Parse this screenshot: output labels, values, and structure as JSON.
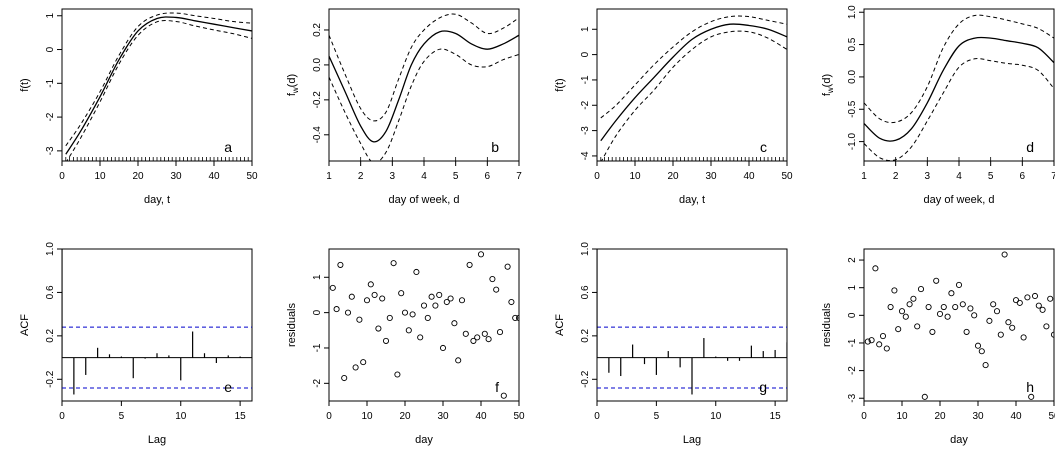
{
  "chart_data": [
    {
      "id": "a",
      "type": "line",
      "letter": "a",
      "xlabel": "day, t",
      "ylabel": "f(t)",
      "xlim": [
        0,
        50
      ],
      "ylim": [
        -3.3,
        1.2
      ],
      "xticks": [
        0,
        10,
        20,
        30,
        40,
        50
      ],
      "yticks": [
        -3,
        -2,
        -1,
        0,
        1
      ],
      "rug": true,
      "x": [
        1,
        5,
        10,
        15,
        20,
        25,
        30,
        35,
        40,
        45,
        50
      ],
      "series": [
        {
          "style": "solid",
          "values": [
            -3.1,
            -2.4,
            -1.4,
            -0.3,
            0.55,
            0.92,
            0.95,
            0.85,
            0.75,
            0.65,
            0.55
          ]
        },
        {
          "style": "dashed",
          "values": [
            -2.85,
            -2.2,
            -1.25,
            -0.17,
            0.68,
            1.02,
            1.08,
            1.0,
            0.92,
            0.83,
            0.78
          ]
        },
        {
          "style": "dashed",
          "values": [
            -3.35,
            -2.6,
            -1.55,
            -0.43,
            0.42,
            0.82,
            0.83,
            0.7,
            0.58,
            0.47,
            0.33
          ]
        }
      ]
    },
    {
      "id": "b",
      "type": "line",
      "letter": "b",
      "xlabel": "day of week, d",
      "ylabel": "f_w(d)",
      "xlim": [
        1,
        7
      ],
      "ylim": [
        -0.55,
        0.32
      ],
      "xticks": [
        1,
        2,
        3,
        4,
        5,
        6,
        7
      ],
      "yticks": [
        -0.4,
        -0.2,
        0.0,
        0.2
      ],
      "rug": true,
      "x": [
        1,
        1.5,
        2,
        2.4,
        2.8,
        3.2,
        3.6,
        4,
        4.5,
        5,
        5.5,
        6,
        6.5,
        7
      ],
      "series": [
        {
          "style": "solid",
          "values": [
            0.05,
            -0.15,
            -0.35,
            -0.44,
            -0.38,
            -0.2,
            0.0,
            0.12,
            0.19,
            0.18,
            0.12,
            0.09,
            0.12,
            0.17
          ]
        },
        {
          "style": "dashed",
          "values": [
            0.17,
            -0.05,
            -0.25,
            -0.32,
            -0.27,
            -0.08,
            0.1,
            0.2,
            0.27,
            0.29,
            0.24,
            0.18,
            0.21,
            0.27
          ]
        },
        {
          "style": "dashed",
          "values": [
            -0.07,
            -0.27,
            -0.45,
            -0.56,
            -0.5,
            -0.32,
            -0.12,
            0.02,
            0.09,
            0.06,
            0.0,
            -0.01,
            0.03,
            0.06
          ]
        }
      ]
    },
    {
      "id": "c",
      "type": "line",
      "letter": "c",
      "xlabel": "day, t",
      "ylabel": "f(t)",
      "xlim": [
        0,
        50
      ],
      "ylim": [
        -4.2,
        1.8
      ],
      "xticks": [
        0,
        10,
        20,
        30,
        40,
        50
      ],
      "yticks": [
        -4,
        -3,
        -2,
        -1,
        0,
        1
      ],
      "rug": true,
      "x": [
        1,
        5,
        10,
        15,
        20,
        25,
        30,
        35,
        40,
        45,
        50
      ],
      "series": [
        {
          "style": "solid",
          "values": [
            -3.4,
            -2.6,
            -1.7,
            -0.9,
            -0.1,
            0.6,
            1.0,
            1.2,
            1.15,
            1.0,
            0.7
          ]
        },
        {
          "style": "dashed",
          "values": [
            -2.5,
            -2.0,
            -1.2,
            -0.4,
            0.3,
            0.9,
            1.3,
            1.5,
            1.5,
            1.35,
            1.2
          ]
        },
        {
          "style": "dashed",
          "values": [
            -4.25,
            -3.2,
            -2.2,
            -1.4,
            -0.5,
            0.2,
            0.7,
            0.9,
            0.9,
            0.65,
            0.2
          ]
        }
      ]
    },
    {
      "id": "d",
      "type": "line",
      "letter": "d",
      "xlabel": "day of week, d",
      "ylabel": "f_w(d)",
      "xlim": [
        1,
        7
      ],
      "ylim": [
        -1.3,
        1.05
      ],
      "xticks": [
        1,
        2,
        3,
        4,
        5,
        6,
        7
      ],
      "yticks": [
        -1.0,
        -0.5,
        0.0,
        0.5,
        1.0
      ],
      "rug": true,
      "x": [
        1,
        1.5,
        2,
        2.5,
        3,
        3.5,
        4,
        4.5,
        5,
        5.5,
        6,
        6.5,
        7
      ],
      "series": [
        {
          "style": "solid",
          "values": [
            -0.72,
            -0.95,
            -0.98,
            -0.8,
            -0.4,
            0.1,
            0.48,
            0.6,
            0.6,
            0.56,
            0.52,
            0.45,
            0.22
          ]
        },
        {
          "style": "dashed",
          "values": [
            -0.4,
            -0.65,
            -0.7,
            -0.55,
            -0.15,
            0.45,
            0.82,
            0.95,
            0.93,
            0.88,
            0.82,
            0.75,
            0.6
          ]
        },
        {
          "style": "dashed",
          "values": [
            -1.03,
            -1.25,
            -1.28,
            -1.08,
            -0.68,
            -0.25,
            0.15,
            0.28,
            0.25,
            0.21,
            0.18,
            0.1,
            -0.18
          ]
        }
      ]
    },
    {
      "id": "e",
      "type": "acf",
      "letter": "e",
      "xlabel": "Lag",
      "ylabel": "ACF",
      "xlim": [
        0,
        16
      ],
      "ylim": [
        -0.4,
        1.0
      ],
      "xticks": [
        0,
        5,
        10,
        15
      ],
      "yticks": [
        -0.2,
        0.2,
        0.6,
        1.0
      ],
      "ci": 0.28,
      "ci_color": "#0000cc",
      "lags": [
        0,
        1,
        2,
        3,
        4,
        5,
        6,
        7,
        8,
        9,
        10,
        11,
        12,
        13,
        14,
        15,
        16
      ],
      "values": [
        1.0,
        -0.34,
        -0.16,
        0.09,
        0.03,
        0.01,
        -0.19,
        -0.01,
        0.04,
        0.02,
        -0.21,
        0.24,
        0.04,
        -0.05,
        0.02,
        0.01,
        0.07
      ]
    },
    {
      "id": "f",
      "type": "scatter",
      "letter": "f",
      "xlabel": "day",
      "ylabel": "residuals",
      "xlim": [
        0,
        50
      ],
      "ylim": [
        -2.5,
        1.8
      ],
      "xticks": [
        0,
        10,
        20,
        30,
        40,
        50
      ],
      "yticks": [
        -2,
        -1,
        0,
        1
      ],
      "x": [
        1,
        2,
        3,
        4,
        5,
        6,
        7,
        8,
        9,
        10,
        11,
        12,
        13,
        14,
        15,
        16,
        17,
        18,
        19,
        20,
        21,
        22,
        23,
        24,
        25,
        26,
        27,
        28,
        29,
        30,
        31,
        32,
        33,
        34,
        35,
        36,
        37,
        38,
        39,
        40,
        41,
        42,
        43,
        44,
        45,
        46,
        47,
        48,
        49,
        50
      ],
      "values": [
        0.7,
        0.1,
        1.35,
        -1.85,
        0.0,
        0.45,
        -1.55,
        -0.2,
        -1.4,
        0.35,
        0.8,
        0.5,
        -0.45,
        0.4,
        -0.8,
        -0.15,
        1.4,
        -1.75,
        0.55,
        0.0,
        -0.5,
        -0.05,
        1.15,
        -0.7,
        0.2,
        -0.15,
        0.45,
        0.2,
        0.5,
        -1.0,
        0.3,
        0.4,
        -0.3,
        -1.35,
        0.35,
        -0.6,
        1.35,
        -0.8,
        -0.7,
        1.65,
        -0.6,
        -0.75,
        0.95,
        0.65,
        -0.55,
        -2.35,
        1.3,
        0.3,
        -0.15,
        -0.15
      ]
    },
    {
      "id": "g",
      "type": "acf",
      "letter": "g",
      "xlabel": "Lag",
      "ylabel": "ACF",
      "xlim": [
        0,
        16
      ],
      "ylim": [
        -0.4,
        1.0
      ],
      "xticks": [
        0,
        5,
        10,
        15
      ],
      "yticks": [
        -0.2,
        0.2,
        0.6,
        1.0
      ],
      "ci": 0.28,
      "ci_color": "#0000cc",
      "lags": [
        0,
        1,
        2,
        3,
        4,
        5,
        6,
        7,
        8,
        9,
        10,
        11,
        12,
        13,
        14,
        15,
        16
      ],
      "values": [
        1.0,
        -0.14,
        -0.17,
        0.12,
        -0.06,
        -0.16,
        0.06,
        -0.09,
        -0.34,
        0.18,
        0.01,
        -0.03,
        -0.03,
        0.11,
        0.06,
        0.07,
        0.14
      ]
    },
    {
      "id": "h",
      "type": "scatter",
      "letter": "h",
      "xlabel": "day",
      "ylabel": "residuals",
      "xlim": [
        0,
        50
      ],
      "ylim": [
        -3.1,
        2.4
      ],
      "xticks": [
        0,
        10,
        20,
        30,
        40,
        50
      ],
      "yticks": [
        -3,
        -2,
        -1,
        0,
        1,
        2
      ],
      "x": [
        1,
        2,
        3,
        4,
        5,
        6,
        7,
        8,
        9,
        10,
        11,
        12,
        13,
        14,
        15,
        16,
        17,
        18,
        19,
        20,
        21,
        22,
        23,
        24,
        25,
        26,
        27,
        28,
        29,
        30,
        31,
        32,
        33,
        34,
        35,
        36,
        37,
        38,
        39,
        40,
        41,
        42,
        43,
        44,
        45,
        46,
        47,
        48,
        49,
        50
      ],
      "values": [
        -0.95,
        -0.9,
        1.7,
        -1.05,
        -0.75,
        -1.2,
        0.3,
        0.9,
        -0.5,
        0.15,
        -0.05,
        0.4,
        0.6,
        -0.4,
        0.95,
        -2.95,
        0.3,
        -0.6,
        1.25,
        0.05,
        0.3,
        -0.05,
        0.8,
        0.3,
        1.1,
        0.4,
        -0.6,
        0.25,
        0.0,
        -1.1,
        -1.3,
        -1.8,
        -0.2,
        0.4,
        0.15,
        -0.7,
        2.2,
        -0.25,
        -0.45,
        0.55,
        0.45,
        -0.8,
        0.65,
        -2.95,
        0.7,
        0.35,
        0.2,
        -0.4,
        0.6,
        -0.7
      ]
    }
  ]
}
